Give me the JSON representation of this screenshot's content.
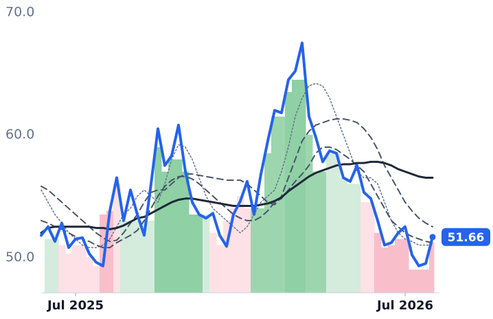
{
  "chart_data": {
    "type": "line",
    "categories": [
      null,
      null,
      null,
      null,
      null,
      "Jul 2025",
      null,
      null,
      null,
      null,
      null,
      null,
      null,
      null,
      null,
      null,
      null,
      null,
      null,
      null,
      null,
      null,
      null,
      null,
      null,
      null,
      null,
      null,
      null,
      null,
      null,
      null,
      null,
      null,
      null,
      null,
      null,
      null,
      null,
      null,
      null,
      null,
      null,
      null,
      null,
      null,
      null,
      null,
      null,
      null,
      null,
      null,
      null,
      "Jul 2026",
      null,
      null,
      null,
      null
    ],
    "ylim": [
      47.1,
      70
    ],
    "yticks": [
      {
        "value": 50,
        "label": "50.0"
      },
      {
        "value": 60,
        "label": "60.0"
      },
      {
        "value": 70,
        "label": "70.0"
      }
    ],
    "bars": {
      "values": [
        51.5,
        51.5,
        51.5,
        51.0,
        50.3,
        51.0,
        51.0,
        50.0,
        49.3,
        53.5,
        53.8,
        56.0,
        53.0,
        53.0,
        53.0,
        53.0,
        53.0,
        59.0,
        57.0,
        58.0,
        58.0,
        57.0,
        53.5,
        53.5,
        53.5,
        52.0,
        51.0,
        53.0,
        54.0,
        55.0,
        54.0,
        54.0,
        54.0,
        58.5,
        61.5,
        61.5,
        63.5,
        64.5,
        64.5,
        60.0,
        57.0,
        57.0,
        58.5,
        58.5,
        56.5,
        56.0,
        56.0,
        54.5,
        54.5,
        52.0,
        50.8,
        51.0,
        51.5,
        51.5,
        49.0,
        49.0,
        49.0,
        51.2
      ],
      "colors": [
        "#d3ecdb",
        "#d3ecdb",
        "#d3ecdb",
        "#fde1e6",
        "#fde1e6",
        "#fde1e6",
        "#fde1e6",
        "#fde1e6",
        "#fde1e6",
        "#f8bfca",
        "#f8bfca",
        "#fde1e6",
        "#d3ecdb",
        "#d3ecdb",
        "#d3ecdb",
        "#d3ecdb",
        "#d3ecdb",
        "#8fd0a4",
        "#8fd0a4",
        "#8fd0a4",
        "#8fd0a4",
        "#8fd0a4",
        "#8fd0a4",
        "#8fd0a4",
        "#d3ecdb",
        "#fde1e6",
        "#fde1e6",
        "#fde1e6",
        "#fde1e6",
        "#fde1e6",
        "#fde1e6",
        "#9dd6ae",
        "#9dd6ae",
        "#9dd6ae",
        "#9dd6ae",
        "#9dd6ae",
        "#8fd0a4",
        "#8fd0a4",
        "#8fd0a4",
        "#9dd6ae",
        "#9dd6ae",
        "#9dd6ae",
        "#d3ecdb",
        "#d3ecdb",
        "#d3ecdb",
        "#d3ecdb",
        "#d3ecdb",
        "#fde1e6",
        "#fde1e6",
        "#f8bfca",
        "#f8bfca",
        "#f8bfca",
        "#f8bfca",
        "#f8bfca",
        "#f8bfca",
        "#f8bfca",
        "#f8bfca",
        "#f8bfca"
      ]
    },
    "series": [
      {
        "color": "#64748b",
        "dash": "dotted",
        "width": 1.5,
        "values": [
          55.5,
          54.5,
          53.5,
          52.8,
          52.0,
          51.5,
          51.0,
          50.8,
          50.8,
          51.0,
          51.5,
          52.5,
          53.5,
          54.0,
          55.0,
          55.5,
          55.0,
          54.5,
          56.0,
          58.0,
          59.2,
          59.0,
          58.0,
          56.5,
          55.0,
          54.0,
          53.5,
          53.0,
          52.5,
          52.0,
          52.5,
          53.5,
          54.5,
          55.0,
          55.5,
          57.0,
          59.0,
          61.5,
          63.0,
          64.0,
          64.2,
          64.0,
          63.0,
          61.5,
          60.0,
          58.5,
          57.0,
          56.5,
          56.5,
          56.0,
          54.5,
          53.0,
          52.0,
          51.5,
          51.3,
          51.0,
          51.0,
          51.0
        ]
      },
      {
        "color": "#475569",
        "dash": "dashed",
        "width": 2,
        "values": [
          55.8,
          55.5,
          55.0,
          54.5,
          54.0,
          53.5,
          53.0,
          52.5,
          52.0,
          51.6,
          51.3,
          51.4,
          52.0,
          52.8,
          53.5,
          54.5,
          55.3,
          55.5,
          55.5,
          56.0,
          56.5,
          56.8,
          56.8,
          56.7,
          56.6,
          56.5,
          56.4,
          56.3,
          56.3,
          56.3,
          56.0,
          55.5,
          55.0,
          54.5,
          54.3,
          55.0,
          56.5,
          58.0,
          59.5,
          60.3,
          60.8,
          61.0,
          61.2,
          61.3,
          61.3,
          61.2,
          61.0,
          60.5,
          59.8,
          58.8,
          57.5,
          56.5,
          55.5,
          54.5,
          53.8,
          53.2,
          52.8,
          52.5
        ]
      },
      {
        "color": "#475569",
        "dash": "dashed",
        "width": 2,
        "values": [
          53.0,
          52.8,
          52.5,
          52.3,
          52.0,
          51.7,
          51.5,
          51.3,
          51.0,
          50.8,
          50.8,
          51.2,
          51.5,
          51.8,
          52.2,
          53.0,
          54.0,
          55.0,
          55.8,
          56.3,
          56.6,
          56.6,
          56.4,
          56.0,
          55.5,
          55.0,
          54.5,
          54.0,
          53.5,
          53.2,
          53.0,
          53.0,
          53.3,
          53.8,
          54.5,
          54.8,
          55.5,
          56.2,
          56.8,
          57.5,
          58.5,
          59.0,
          59.0,
          58.8,
          58.4,
          58.0,
          57.5,
          57.0,
          56.0,
          55.0,
          54.0,
          53.0,
          52.5,
          52.0,
          51.7,
          51.5,
          51.3,
          51.2
        ]
      },
      {
        "color": "#1e293b",
        "dash": "solid",
        "width": 3,
        "values": [
          52.0,
          52.4,
          52.5,
          52.5,
          52.5,
          52.5,
          52.5,
          52.5,
          52.4,
          52.4,
          52.3,
          52.4,
          52.6,
          52.9,
          53.2,
          53.3,
          53.6,
          53.9,
          54.2,
          54.5,
          54.7,
          54.8,
          54.8,
          54.7,
          54.6,
          54.5,
          54.4,
          54.3,
          54.2,
          54.2,
          54.2,
          54.2,
          54.3,
          54.4,
          54.6,
          54.9,
          55.4,
          55.8,
          56.2,
          56.6,
          56.9,
          57.1,
          57.3,
          57.5,
          57.6,
          57.6,
          57.7,
          57.7,
          57.8,
          57.8,
          57.7,
          57.5,
          57.2,
          57.0,
          56.8,
          56.6,
          56.5,
          56.5
        ]
      },
      {
        "color": "#2563eb",
        "dash": "solid",
        "width": 4,
        "last_label": true,
        "values": [
          51.8,
          52.5,
          51.3,
          52.8,
          50.8,
          51.5,
          51.6,
          50.3,
          49.6,
          49.3,
          53.8,
          56.5,
          53.0,
          55.5,
          53.5,
          51.8,
          56.0,
          60.5,
          57.5,
          58.3,
          60.8,
          57.0,
          54.5,
          53.5,
          53.2,
          53.6,
          51.8,
          50.9,
          53.5,
          54.6,
          56.2,
          53.5,
          56.8,
          59.5,
          62.0,
          61.8,
          64.5,
          65.2,
          67.5,
          61.5,
          59.8,
          57.8,
          58.7,
          58.5,
          56.5,
          56.2,
          57.5,
          55.3,
          54.8,
          53.0,
          51.0,
          51.2,
          52.0,
          52.5,
          50.2,
          49.3,
          49.5,
          51.66
        ]
      }
    ]
  }
}
